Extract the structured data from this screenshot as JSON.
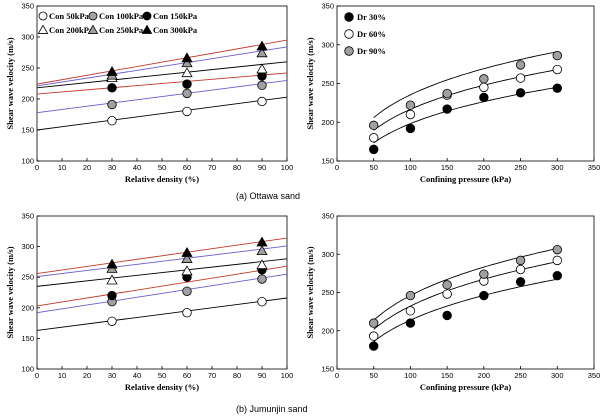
{
  "captions": {
    "a": "(a) Ottawa sand",
    "b": "(b) Jumunjin sand"
  },
  "colors": {
    "black": "#000000",
    "white": "#ffffff",
    "gray": "#a0a0a0",
    "red": "#c0392b",
    "blue": "#6a5acd"
  },
  "chart_data": [
    {
      "id": "a-left",
      "type": "scatter",
      "xlabel": "Relative density (%)",
      "ylabel": "Shear wave velocity (m/s)",
      "xlim": [
        0,
        100
      ],
      "ylim": [
        100,
        350
      ],
      "xticks": [
        0,
        10,
        20,
        30,
        40,
        50,
        60,
        70,
        80,
        90,
        100
      ],
      "yticks": [
        100,
        150,
        200,
        250,
        300,
        350
      ],
      "legend": "top-left",
      "series": [
        {
          "name": "Con 50kPa",
          "marker": "circle-open",
          "line_color": "black",
          "x": [
            30,
            60,
            90
          ],
          "y": [
            165,
            180,
            196
          ],
          "fit": [
            150,
            203
          ]
        },
        {
          "name": "Con 100kPa",
          "marker": "circle-gray",
          "line_color": "blue",
          "x": [
            30,
            60,
            90
          ],
          "y": [
            191,
            209,
            222
          ],
          "fit": [
            178,
            230
          ]
        },
        {
          "name": "Con 150kPa",
          "marker": "circle-black",
          "line_color": "red",
          "x": [
            30,
            60,
            90
          ],
          "y": [
            218,
            224,
            237
          ],
          "fit": [
            208,
            242
          ]
        },
        {
          "name": "Con 200kPa",
          "marker": "triangle-open",
          "line_color": "black",
          "x": [
            30,
            60,
            90
          ],
          "y": [
            234,
            242,
            248
          ],
          "fit": [
            218,
            260
          ]
        },
        {
          "name": "Con 250kPa",
          "marker": "triangle-gray",
          "line_color": "blue",
          "x": [
            30,
            60,
            90
          ],
          "y": [
            238,
            258,
            274
          ],
          "fit": [
            221,
            284
          ]
        },
        {
          "name": "Con 300kPa",
          "marker": "triangle-black",
          "line_color": "red",
          "x": [
            30,
            60,
            90
          ],
          "y": [
            244,
            266,
            285
          ],
          "fit": [
            224,
            295
          ]
        }
      ]
    },
    {
      "id": "a-right",
      "type": "scatter",
      "xlabel": "Confining pressure (kPa)",
      "ylabel": "Shear wave velocity (m/s)",
      "xlim": [
        0,
        350
      ],
      "ylim": [
        150,
        350
      ],
      "xticks": [
        0,
        50,
        100,
        150,
        200,
        250,
        300,
        350
      ],
      "yticks": [
        150,
        200,
        250,
        300,
        350
      ],
      "legend": "top-left",
      "series": [
        {
          "name": "Dr 30%",
          "marker": "circle-black",
          "x": [
            50,
            100,
            150,
            200,
            250,
            300
          ],
          "y": [
            165,
            192,
            217,
            232,
            238,
            244
          ],
          "fit_coef": 81.5,
          "fit_exp": 0.193
        },
        {
          "name": "Dr 60%",
          "marker": "circle-open",
          "x": [
            50,
            100,
            150,
            200,
            250,
            300
          ],
          "y": [
            180,
            210,
            235,
            245,
            257,
            268
          ],
          "fit_coef": 89.1,
          "fit_exp": 0.193
        },
        {
          "name": "Dr 90%",
          "marker": "circle-gray",
          "x": [
            50,
            100,
            150,
            200,
            250,
            300
          ],
          "y": [
            196,
            222,
            237,
            256,
            274,
            286
          ],
          "fit_coef": 96.8,
          "fit_exp": 0.193
        }
      ]
    },
    {
      "id": "b-left",
      "type": "scatter",
      "xlabel": "Relative density (%)",
      "ylabel": "Shear wave velocity (m/s)",
      "xlim": [
        0,
        100
      ],
      "ylim": [
        100,
        350
      ],
      "xticks": [
        0,
        10,
        20,
        30,
        40,
        50,
        60,
        70,
        80,
        90,
        100
      ],
      "yticks": [
        100,
        150,
        200,
        250,
        300,
        350
      ],
      "legend": "none",
      "series": [
        {
          "name": "Con 50kPa",
          "marker": "circle-open",
          "line_color": "black",
          "x": [
            30,
            60,
            90
          ],
          "y": [
            178,
            192,
            210
          ],
          "fit": [
            163,
            216
          ]
        },
        {
          "name": "Con 100kPa",
          "marker": "circle-gray",
          "line_color": "blue",
          "x": [
            30,
            60,
            90
          ],
          "y": [
            210,
            227,
            247
          ],
          "fit": [
            192,
            255
          ]
        },
        {
          "name": "Con 150kPa",
          "marker": "circle-black",
          "line_color": "red",
          "x": [
            30,
            60,
            90
          ],
          "y": [
            220,
            250,
            262
          ],
          "fit": [
            203,
            268
          ]
        },
        {
          "name": "Con 200kPa",
          "marker": "triangle-open",
          "line_color": "black",
          "x": [
            30,
            60,
            90
          ],
          "y": [
            245,
            260,
            270
          ],
          "fit": [
            235,
            280
          ]
        },
        {
          "name": "Con 250kPa",
          "marker": "triangle-gray",
          "line_color": "blue",
          "x": [
            30,
            60,
            90
          ],
          "y": [
            264,
            280,
            293
          ],
          "fit": [
            251,
            301
          ]
        },
        {
          "name": "Con 300kPa",
          "marker": "triangle-black",
          "line_color": "red",
          "x": [
            30,
            60,
            90
          ],
          "y": [
            271,
            290,
            307
          ],
          "fit": [
            256,
            314
          ]
        }
      ]
    },
    {
      "id": "b-right",
      "type": "scatter",
      "xlabel": "Confining pressure (kPa)",
      "ylabel": "Shear wave velocity (m/s)",
      "xlim": [
        0,
        350
      ],
      "ylim": [
        150,
        350
      ],
      "xticks": [
        0,
        50,
        100,
        150,
        200,
        250,
        300,
        350
      ],
      "yticks": [
        150,
        200,
        250,
        300,
        350
      ],
      "legend": "none",
      "series": [
        {
          "name": "Dr 30%",
          "marker": "circle-black",
          "x": [
            50,
            100,
            150,
            200,
            250,
            300
          ],
          "y": [
            180,
            210,
            220,
            246,
            264,
            272
          ],
          "fit_coef": 84.0,
          "fit_exp": 0.203
        },
        {
          "name": "Dr 60%",
          "marker": "circle-open",
          "x": [
            50,
            100,
            150,
            200,
            250,
            300
          ],
          "y": [
            193,
            226,
            248,
            265,
            280,
            292
          ],
          "fit_coef": 91.2,
          "fit_exp": 0.203
        },
        {
          "name": "Dr 90%",
          "marker": "circle-gray",
          "x": [
            50,
            100,
            150,
            200,
            250,
            300
          ],
          "y": [
            210,
            246,
            260,
            274,
            292,
            306
          ],
          "fit_coef": 96.6,
          "fit_exp": 0.203
        }
      ]
    }
  ]
}
